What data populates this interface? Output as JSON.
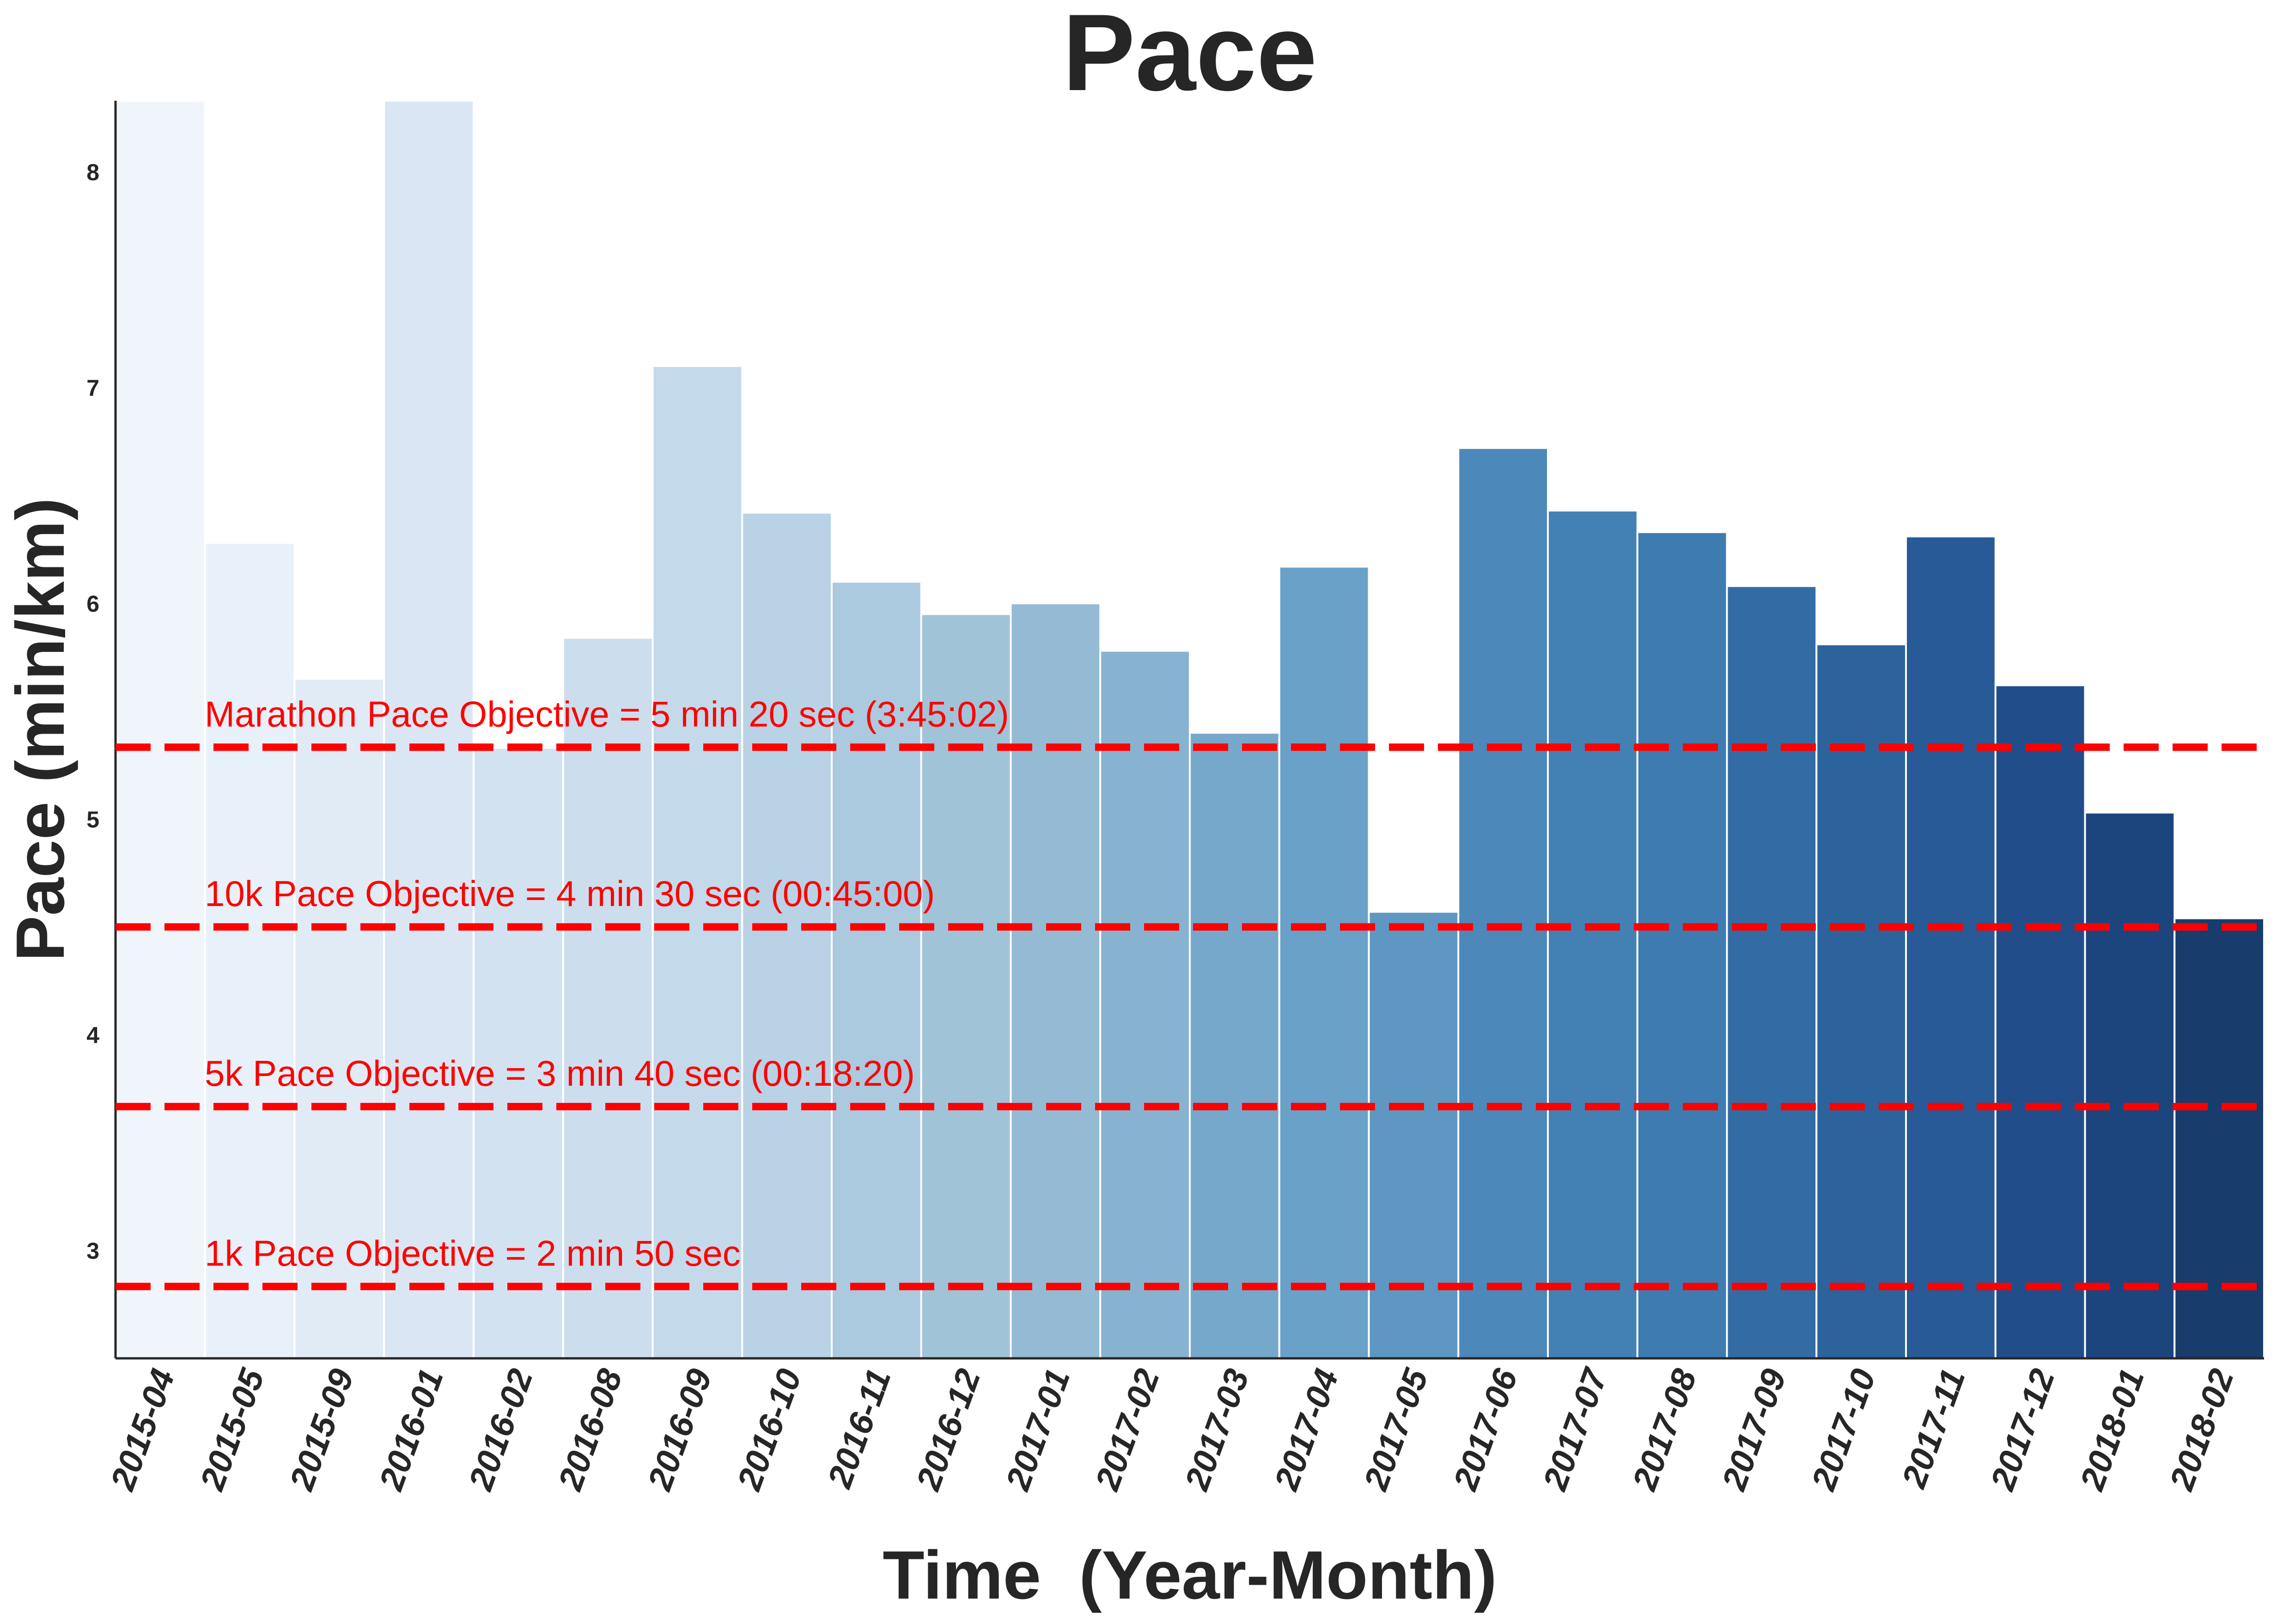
{
  "chart_data": {
    "type": "bar",
    "title": "Pace",
    "xlabel": "Time  (Year-Month)",
    "ylabel": "Pace (min/km)",
    "ylim": [
      2.5,
      8.33
    ],
    "yticks": [
      3,
      4,
      5,
      6,
      7,
      8
    ],
    "grid": false,
    "categories": [
      "2015-04",
      "2015-05",
      "2015-09",
      "2016-01",
      "2016-02",
      "2016-08",
      "2016-09",
      "2016-10",
      "2016-11",
      "2016-12",
      "2017-01",
      "2017-02",
      "2017-03",
      "2017-04",
      "2017-05",
      "2017-06",
      "2017-07",
      "2017-08",
      "2017-09",
      "2017-10",
      "2017-11",
      "2017-12",
      "2018-01",
      "2018-02"
    ],
    "values": [
      8.33,
      6.28,
      5.65,
      8.33,
      5.33,
      5.84,
      7.1,
      6.42,
      6.1,
      5.95,
      6.0,
      5.78,
      5.4,
      6.17,
      4.57,
      6.72,
      6.43,
      6.33,
      6.08,
      5.81,
      6.31,
      5.62,
      5.03,
      4.54
    ],
    "bar_colors": [
      "#eff5fb",
      "#e8f0f9",
      "#e1ebf6",
      "#dae6f3",
      "#d3e2f0",
      "#ccdeee",
      "#c4d9ea",
      "#b9d2e5",
      "#abc9df",
      "#a0c3d8",
      "#94bbd3",
      "#87b3d0",
      "#76a8cb",
      "#6aa1c8",
      "#5e97c1",
      "#4c88b9",
      "#4381b4",
      "#3e7bb1",
      "#336ca4",
      "#2c639c",
      "#275a96",
      "#214e8a",
      "#1c457e",
      "#183c6c"
    ],
    "reference_lines": [
      {
        "value": 5.333,
        "label": "Marathon Pace Objective = 5 min 20 sec (3:45:02)",
        "color": "#ff0000",
        "style": "dashed"
      },
      {
        "value": 4.5,
        "label": "10k Pace Objective = 4 min 30 sec (00:45:00)",
        "color": "#ff0000",
        "style": "dashed"
      },
      {
        "value": 3.667,
        "label": "5k Pace Objective = 3 min 40 sec (00:18:20)",
        "color": "#ff0000",
        "style": "dashed"
      },
      {
        "value": 2.833,
        "label": "1k Pace Objective = 2 min 50 sec",
        "color": "#ff0000",
        "style": "dashed"
      }
    ]
  }
}
